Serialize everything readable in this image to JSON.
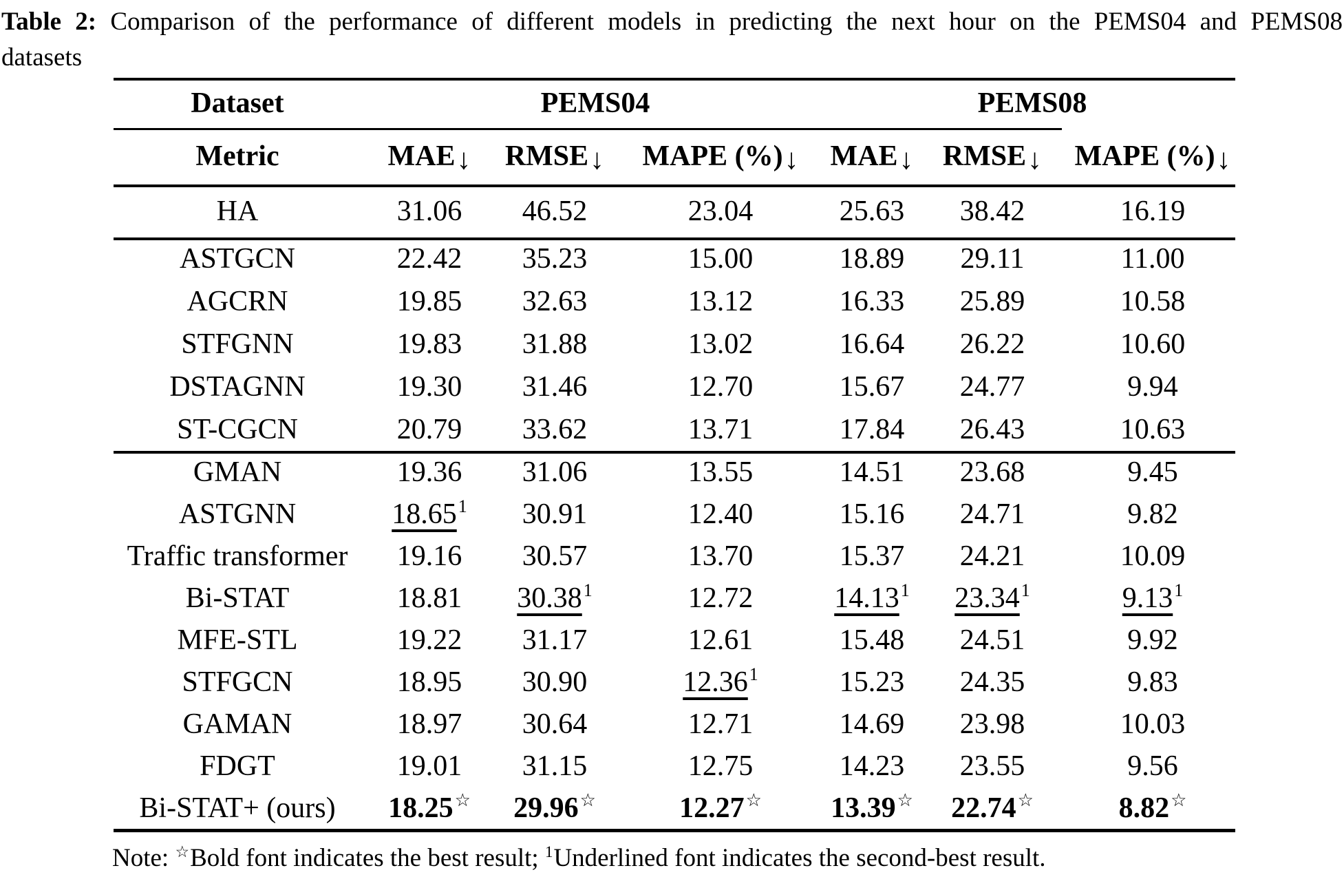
{
  "caption": {
    "label": "Table 2:",
    "body_line1": "Comparison of the performance of different models in predicting the next hour on the PEMS04 and PEMS08",
    "body_line2": "datasets"
  },
  "colors": {
    "text": "#000000",
    "background": "#ffffff",
    "rule": "#000000"
  },
  "table": {
    "corner_row1": "Dataset",
    "corner_row2": "Metric",
    "groups": [
      {
        "label": "PEMS04"
      },
      {
        "label": "PEMS08"
      }
    ],
    "metric_columns": [
      {
        "label": "MAE",
        "arrow": "↓"
      },
      {
        "label": "RMSE",
        "arrow": "↓"
      },
      {
        "label": "MAPE (%)",
        "arrow": "↓"
      },
      {
        "label": "MAE",
        "arrow": "↓"
      },
      {
        "label": "RMSE",
        "arrow": "↓"
      },
      {
        "label": "MAPE (%)",
        "arrow": "↓"
      }
    ],
    "markers": {
      "best_marker": "☆",
      "second_marker": "1"
    },
    "sections": [
      {
        "rows": [
          {
            "model": "HA",
            "cells": [
              {
                "v": "31.06"
              },
              {
                "v": "46.52"
              },
              {
                "v": "23.04"
              },
              {
                "v": "25.63"
              },
              {
                "v": "38.42"
              },
              {
                "v": "16.19"
              }
            ]
          }
        ]
      },
      {
        "rows": [
          {
            "model": "ASTGCN",
            "cells": [
              {
                "v": "22.42"
              },
              {
                "v": "35.23"
              },
              {
                "v": "15.00"
              },
              {
                "v": "18.89"
              },
              {
                "v": "29.11"
              },
              {
                "v": "11.00"
              }
            ]
          },
          {
            "model": "AGCRN",
            "cells": [
              {
                "v": "19.85"
              },
              {
                "v": "32.63"
              },
              {
                "v": "13.12"
              },
              {
                "v": "16.33"
              },
              {
                "v": "25.89"
              },
              {
                "v": "10.58"
              }
            ]
          },
          {
            "model": "STFGNN",
            "cells": [
              {
                "v": "19.83"
              },
              {
                "v": "31.88"
              },
              {
                "v": "13.02"
              },
              {
                "v": "16.64"
              },
              {
                "v": "26.22"
              },
              {
                "v": "10.60"
              }
            ]
          },
          {
            "model": "DSTAGNN",
            "cells": [
              {
                "v": "19.30"
              },
              {
                "v": "31.46"
              },
              {
                "v": "12.70"
              },
              {
                "v": "15.67"
              },
              {
                "v": "24.77"
              },
              {
                "v": "9.94"
              }
            ]
          },
          {
            "model": "ST-CGCN",
            "cells": [
              {
                "v": "20.79"
              },
              {
                "v": "33.62"
              },
              {
                "v": "13.71"
              },
              {
                "v": "17.84"
              },
              {
                "v": "26.43"
              },
              {
                "v": "10.63"
              }
            ]
          }
        ]
      },
      {
        "rows": [
          {
            "model": "GMAN",
            "cells": [
              {
                "v": "19.36"
              },
              {
                "v": "31.06"
              },
              {
                "v": "13.55"
              },
              {
                "v": "14.51"
              },
              {
                "v": "23.68"
              },
              {
                "v": "9.45"
              }
            ]
          },
          {
            "model": "ASTGNN",
            "cells": [
              {
                "v": "18.65",
                "u": true
              },
              {
                "v": "30.91"
              },
              {
                "v": "12.40"
              },
              {
                "v": "15.16"
              },
              {
                "v": "24.71"
              },
              {
                "v": "9.82"
              }
            ]
          },
          {
            "model": "Traffic transformer",
            "cells": [
              {
                "v": "19.16"
              },
              {
                "v": "30.57"
              },
              {
                "v": "13.70"
              },
              {
                "v": "15.37"
              },
              {
                "v": "24.21"
              },
              {
                "v": "10.09"
              }
            ]
          },
          {
            "model": "Bi-STAT",
            "cells": [
              {
                "v": "18.81"
              },
              {
                "v": "30.38",
                "u": true
              },
              {
                "v": "12.72"
              },
              {
                "v": "14.13",
                "u": true
              },
              {
                "v": "23.34",
                "u": true
              },
              {
                "v": "9.13",
                "u": true
              }
            ]
          },
          {
            "model": "MFE-STL",
            "cells": [
              {
                "v": "19.22"
              },
              {
                "v": "31.17"
              },
              {
                "v": "12.61"
              },
              {
                "v": "15.48"
              },
              {
                "v": "24.51"
              },
              {
                "v": "9.92"
              }
            ]
          },
          {
            "model": "STFGCN",
            "cells": [
              {
                "v": "18.95"
              },
              {
                "v": "30.90"
              },
              {
                "v": "12.36",
                "u": true
              },
              {
                "v": "15.23"
              },
              {
                "v": "24.35"
              },
              {
                "v": "9.83"
              }
            ]
          },
          {
            "model": "GAMAN",
            "cells": [
              {
                "v": "18.97"
              },
              {
                "v": "30.64"
              },
              {
                "v": "12.71"
              },
              {
                "v": "14.69"
              },
              {
                "v": "23.98"
              },
              {
                "v": "10.03"
              }
            ]
          },
          {
            "model": "FDGT",
            "cells": [
              {
                "v": "19.01"
              },
              {
                "v": "31.15"
              },
              {
                "v": "12.75"
              },
              {
                "v": "14.23"
              },
              {
                "v": "23.55"
              },
              {
                "v": "9.56"
              }
            ]
          },
          {
            "model": "Bi-STAT+ (ours)",
            "cells": [
              {
                "v": "18.25",
                "b": true
              },
              {
                "v": "29.96",
                "b": true
              },
              {
                "v": "12.27",
                "b": true
              },
              {
                "v": "13.39",
                "b": true
              },
              {
                "v": "22.74",
                "b": true
              },
              {
                "v": "8.82",
                "b": true
              }
            ]
          }
        ]
      }
    ]
  },
  "note": {
    "prefix": "Note: ",
    "star": "☆",
    "best_text": "Bold font indicates the best result; ",
    "one": "1",
    "second_text": "Underlined font indicates the second-best result."
  }
}
